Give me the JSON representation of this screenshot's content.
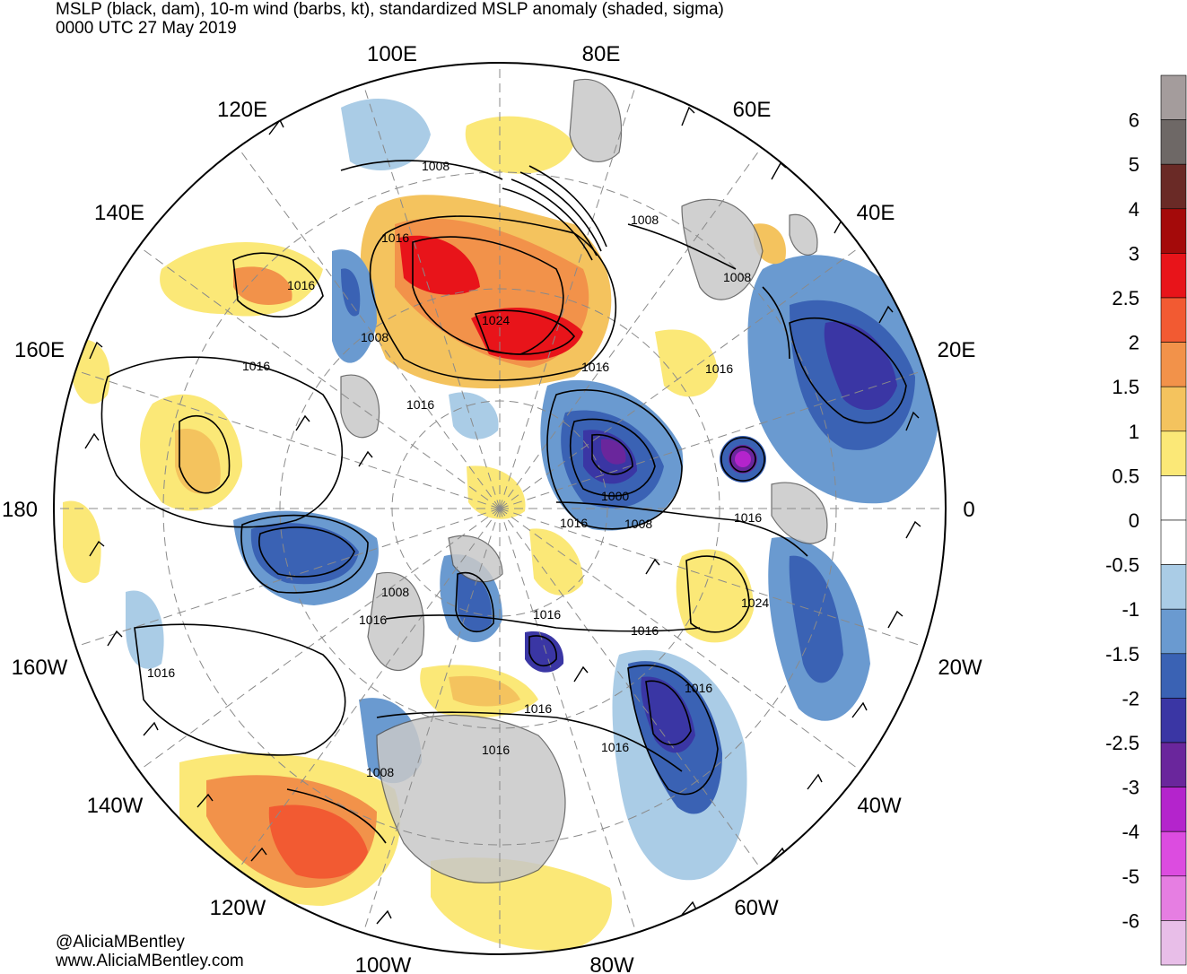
{
  "title_line1": "MSLP (black, dam), 10-m wind (barbs, kt), standardized MSLP anomaly (shaded, sigma)",
  "title_line2": "0000 UTC 27 May 2019",
  "longitude_labels": [
    "100E",
    "80E",
    "120E",
    "60E",
    "140E",
    "40E",
    "160E",
    "20E",
    "180",
    "0",
    "160W",
    "20W",
    "140W",
    "40W",
    "120W",
    "60W",
    "100W",
    "80W"
  ],
  "isobar_labels": [
    "1008",
    "1016",
    "1016",
    "1024",
    "1016",
    "1008",
    "1008",
    "1008",
    "1016",
    "1016",
    "1016",
    "1000",
    "1016",
    "1008",
    "1016",
    "1008",
    "1016",
    "1016",
    "1024",
    "1016",
    "1016",
    "1016",
    "1016",
    "1016",
    "1008",
    "1016"
  ],
  "colorbar": {
    "labels": [
      "6",
      "5",
      "4",
      "3",
      "2.5",
      "2",
      "1.5",
      "1",
      "0.5",
      "0",
      "-0.5",
      "-1",
      "-1.5",
      "-2",
      "-2.5",
      "-3",
      "-4",
      "-5",
      "-6"
    ],
    "colors": [
      "#a49c9c",
      "#6e6866",
      "#6a2a26",
      "#a40a0a",
      "#e8141a",
      "#f25a32",
      "#f2924a",
      "#f4c35e",
      "#fbe877",
      "#ffffff",
      "#ffffff",
      "#aacce6",
      "#6a9ad0",
      "#3a62b4",
      "#3a36a4",
      "#6a269c",
      "#b424cc",
      "#dc4ce0",
      "#e67ee2",
      "#e8bee8"
    ]
  },
  "credit_line1": "@AliciaMBentley",
  "credit_line2": "www.AliciaMBentley.com"
}
